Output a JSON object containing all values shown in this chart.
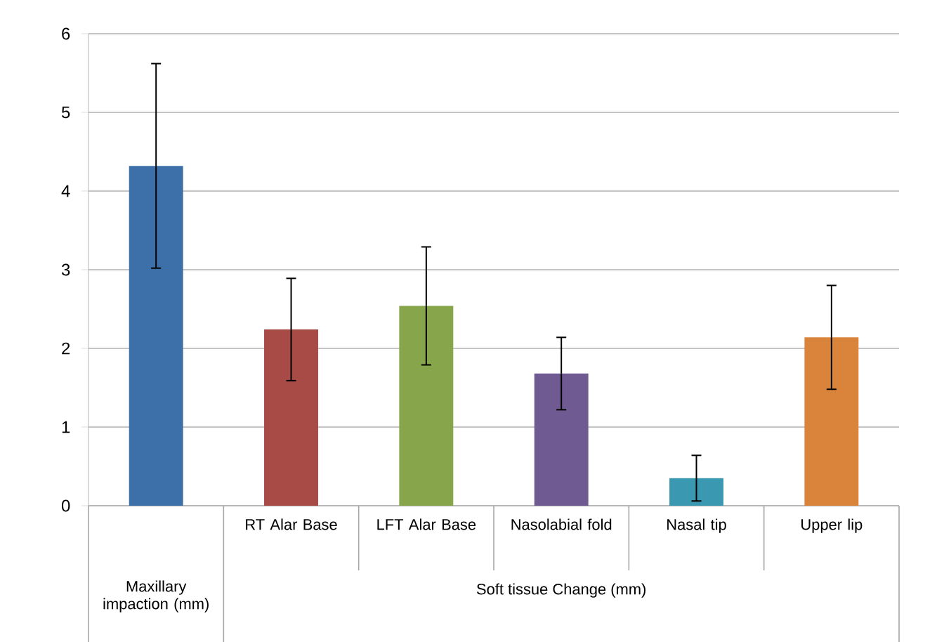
{
  "chart_data": {
    "type": "bar",
    "categories": [
      null,
      "RT Alar Base",
      "LFT Alar Base",
      "Nasolabial fold",
      "Nasal tip",
      "Upper lip"
    ],
    "values": [
      4.32,
      2.24,
      2.54,
      1.68,
      0.35,
      2.14
    ],
    "errors": [
      1.3,
      0.65,
      0.75,
      0.46,
      0.29,
      0.66
    ],
    "colors": [
      "#3d6fa8",
      "#a84a46",
      "#87a54b",
      "#6f5a91",
      "#3a98b0",
      "#d9833b"
    ],
    "xlabel": "Soft tissue Change (mm)",
    "annotations": [
      "Maxillary impaction (mm)"
    ],
    "ylim": [
      0,
      6
    ],
    "yticks": [
      0,
      1,
      2,
      3,
      4,
      5,
      6
    ],
    "grid": "y"
  }
}
